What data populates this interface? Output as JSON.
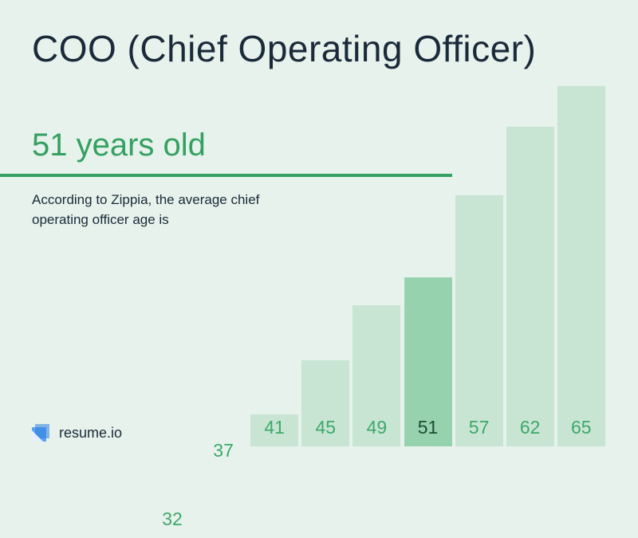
{
  "title": "COO (Chief Operating Officer)",
  "highlight": {
    "value_text": "51 years old",
    "description": "According to Zippia, the average chief operating officer age is"
  },
  "brand": {
    "name": "resume.io",
    "icon": "resume-io-logo-icon"
  },
  "colors": {
    "background": "#e6f2eb",
    "bar": "#c8e5d4",
    "bar_highlight": "#97d2ae",
    "accent": "#34a061",
    "text": "#1b2a3a"
  },
  "chart_data": {
    "type": "bar",
    "categories": [
      "32",
      "37",
      "41",
      "45",
      "49",
      "51",
      "57",
      "62",
      "65"
    ],
    "values": [
      32,
      37,
      41,
      45,
      49,
      51,
      57,
      62,
      65
    ],
    "highlight_category": "51",
    "grid": false
  }
}
